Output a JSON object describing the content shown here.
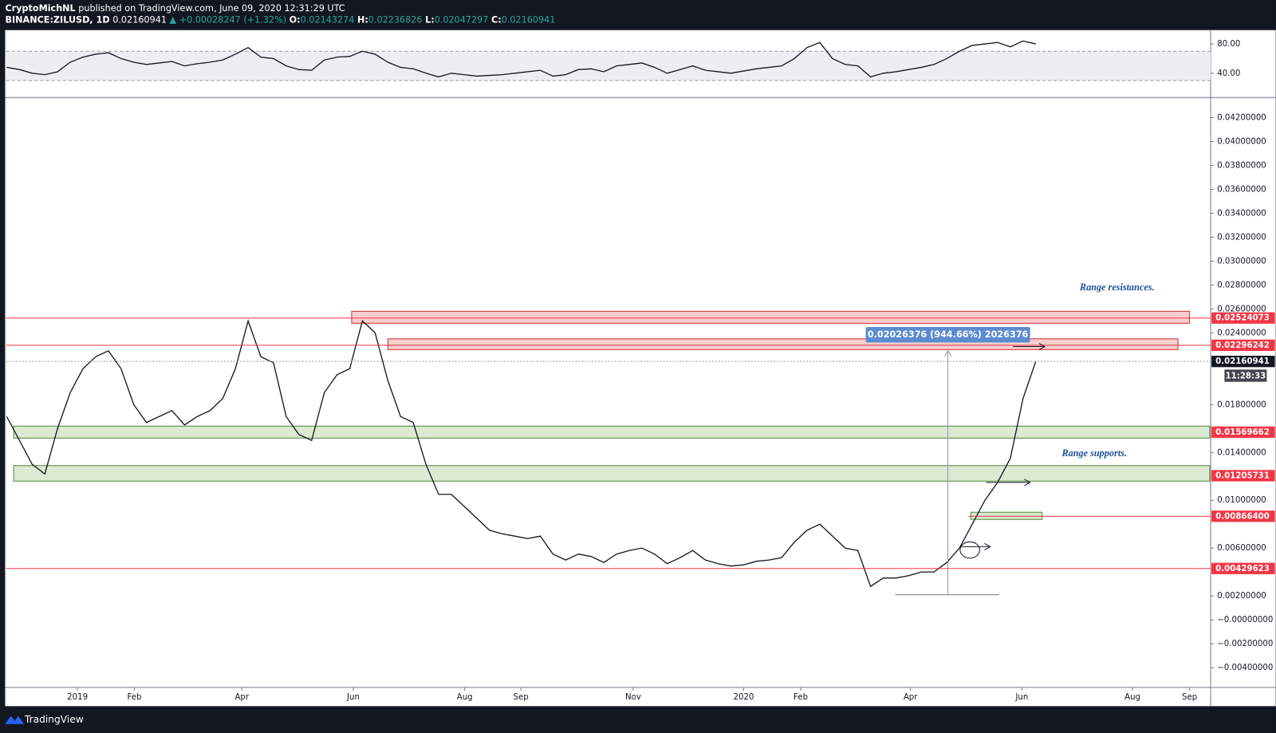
{
  "header": {
    "author": "CryptoMichNL",
    "published": "published on TradingView.com, June 09, 2020 12:31:29 UTC",
    "symbol": "BINANCE:ZILUSD, 1D",
    "last": "0.02160941",
    "change": "▲ +0.00028247 (+1.32%)",
    "ohlc": [
      [
        "O:",
        "0.02143274"
      ],
      [
        "H:",
        "0.02236826"
      ],
      [
        "L:",
        "0.02047297"
      ],
      [
        "C:",
        "0.02160941"
      ]
    ]
  },
  "footer": {
    "brand": "TradingView"
  },
  "chart_data": [
    {
      "type": "line",
      "color": "#131722",
      "band": [
        30,
        70
      ],
      "band_color": "#eceef2",
      "values": [
        48,
        45,
        40,
        38,
        42,
        55,
        62,
        66,
        68,
        60,
        55,
        52,
        54,
        56,
        50,
        53,
        55,
        58,
        66,
        75,
        62,
        60,
        50,
        45,
        44,
        58,
        62,
        63,
        70,
        66,
        55,
        48,
        46,
        40,
        35,
        40,
        38,
        36,
        37,
        38,
        40,
        42,
        44,
        36,
        38,
        45,
        46,
        42,
        50,
        52,
        54,
        48,
        40,
        45,
        50,
        44,
        42,
        40,
        43,
        46,
        48,
        50,
        60,
        75,
        82,
        60,
        52,
        50,
        35,
        40,
        42,
        45,
        48,
        52,
        60,
        70,
        78,
        80,
        82,
        76,
        84,
        80
      ],
      "ylim": [
        6.7,
        98.9
      ],
      "yticks": [
        {
          "value": 80,
          "label": "80.00"
        },
        {
          "value": 40,
          "label": "40.00"
        }
      ],
      "xlim": [
        -0.06,
        94.77
      ]
    },
    {
      "type": "line",
      "color": "#131722",
      "values": [
        0.017,
        0.015,
        0.013,
        0.0122,
        0.016,
        0.019,
        0.021,
        0.022,
        0.0225,
        0.021,
        0.018,
        0.0165,
        0.017,
        0.0175,
        0.0163,
        0.017,
        0.0175,
        0.0185,
        0.021,
        0.025,
        0.022,
        0.0215,
        0.017,
        0.0155,
        0.015,
        0.019,
        0.0205,
        0.021,
        0.025,
        0.024,
        0.02,
        0.017,
        0.0165,
        0.013,
        0.0105,
        0.0105,
        0.0095,
        0.0085,
        0.0075,
        0.0072,
        0.007,
        0.0068,
        0.007,
        0.0055,
        0.005,
        0.0055,
        0.0053,
        0.0048,
        0.0055,
        0.0058,
        0.006,
        0.0055,
        0.0047,
        0.0052,
        0.0058,
        0.005,
        0.0047,
        0.0045,
        0.0046,
        0.0049,
        0.005,
        0.0052,
        0.0065,
        0.0075,
        0.008,
        0.007,
        0.006,
        0.0058,
        0.0028,
        0.0035,
        0.0035,
        0.0037,
        0.004,
        0.004,
        0.0048,
        0.006,
        0.008,
        0.01,
        0.0115,
        0.0135,
        0.0185,
        0.0216
      ],
      "ylim": [
        -0.00565,
        0.04367
      ],
      "yticks": [
        {
          "value": 0.042,
          "label": "0.04200000"
        },
        {
          "value": 0.04,
          "label": "0.04000000"
        },
        {
          "value": 0.038,
          "label": "0.03800000"
        },
        {
          "value": 0.036,
          "label": "0.03600000"
        },
        {
          "value": 0.034,
          "label": "0.03400000"
        },
        {
          "value": 0.032,
          "label": "0.03200000"
        },
        {
          "value": 0.03,
          "label": "0.03000000"
        },
        {
          "value": 0.028,
          "label": "0.02800000"
        },
        {
          "value": 0.026,
          "label": "0.02600000"
        },
        {
          "value": 0.024,
          "label": "0.02400000"
        },
        {
          "value": 0.018,
          "label": "0.01800000"
        },
        {
          "value": 0.014,
          "label": "0.01400000"
        },
        {
          "value": 0.01,
          "label": "0.01000000"
        },
        {
          "value": 0.006,
          "label": "0.00600000"
        },
        {
          "value": 0.002,
          "label": "0.00200000"
        },
        {
          "value": 0,
          "label": "−0.00000000"
        },
        {
          "value": -0.002,
          "label": "−0.00200000"
        },
        {
          "value": -0.004,
          "label": "−0.00400000"
        }
      ],
      "xlim": [
        -0.06,
        94.77
      ],
      "xticks": [
        {
          "value": 5.57,
          "label": "2019"
        },
        {
          "value": 10.05,
          "label": "Feb"
        },
        {
          "value": 18.51,
          "label": "Apr"
        },
        {
          "value": 27.28,
          "label": "Jun"
        },
        {
          "value": 36.05,
          "label": "Aug"
        },
        {
          "value": 40.47,
          "label": "Sep"
        },
        {
          "value": 49.31,
          "label": "Nov"
        },
        {
          "value": 58.01,
          "label": "2020"
        },
        {
          "value": 62.5,
          "label": "Feb"
        },
        {
          "value": 71.14,
          "label": "Apr"
        },
        {
          "value": 79.91,
          "label": "Jun"
        },
        {
          "value": 88.62,
          "label": "Aug"
        },
        {
          "value": 93.11,
          "label": "Sep"
        }
      ],
      "zones": [
        {
          "low": 0.0248,
          "high": 0.0258,
          "from": 27.15,
          "to": 93.11,
          "color": "#f7c6c6",
          "stroke": "#d32f2f"
        },
        {
          "low": 0.0226,
          "high": 0.0235,
          "from": 30.0,
          "to": 92.2,
          "color": "#f7c6c6",
          "stroke": "#d32f2f"
        },
        {
          "low": 0.0152,
          "high": 0.0162,
          "from": 0.55,
          "to": 94.7,
          "color": "#d5e6c8",
          "stroke": "#4c8a3c"
        },
        {
          "low": 0.0116,
          "high": 0.0129,
          "from": 0.55,
          "to": 94.7,
          "color": "#d5e6c8",
          "stroke": "#4c8a3c"
        },
        {
          "low": 0.0084,
          "high": 0.009,
          "from": 75.9,
          "to": 81.5,
          "color": "#d5e6c8",
          "stroke": "#4c8a3c"
        }
      ],
      "levels": [
        {
          "value": 0.02524073,
          "color": "#f23645",
          "from": -0.06
        },
        {
          "value": 0.02296242,
          "color": "#f23645",
          "from": -0.06
        },
        {
          "value": 0.01569662,
          "color": "#f23645",
          "from": 94.77
        },
        {
          "value": 0.01205731,
          "color": "#f23645",
          "from": 94.77
        },
        {
          "value": {
            "value": 0.008664,
            "label": "0.00866400"
          },
          "color": "#f23645",
          "from": 75.7
        },
        {
          "value": 0.00429623,
          "color": "#f23645",
          "from": -0.06
        },
        {
          "value": 0.02160941,
          "color": "#131722",
          "from": -0.06
        }
      ],
      "countdown": "11:28:33",
      "measure": "0.02026376 (944.66%) 2026376",
      "annotations": [
        "Range resistances.",
        "Range supports."
      ]
    }
  ]
}
